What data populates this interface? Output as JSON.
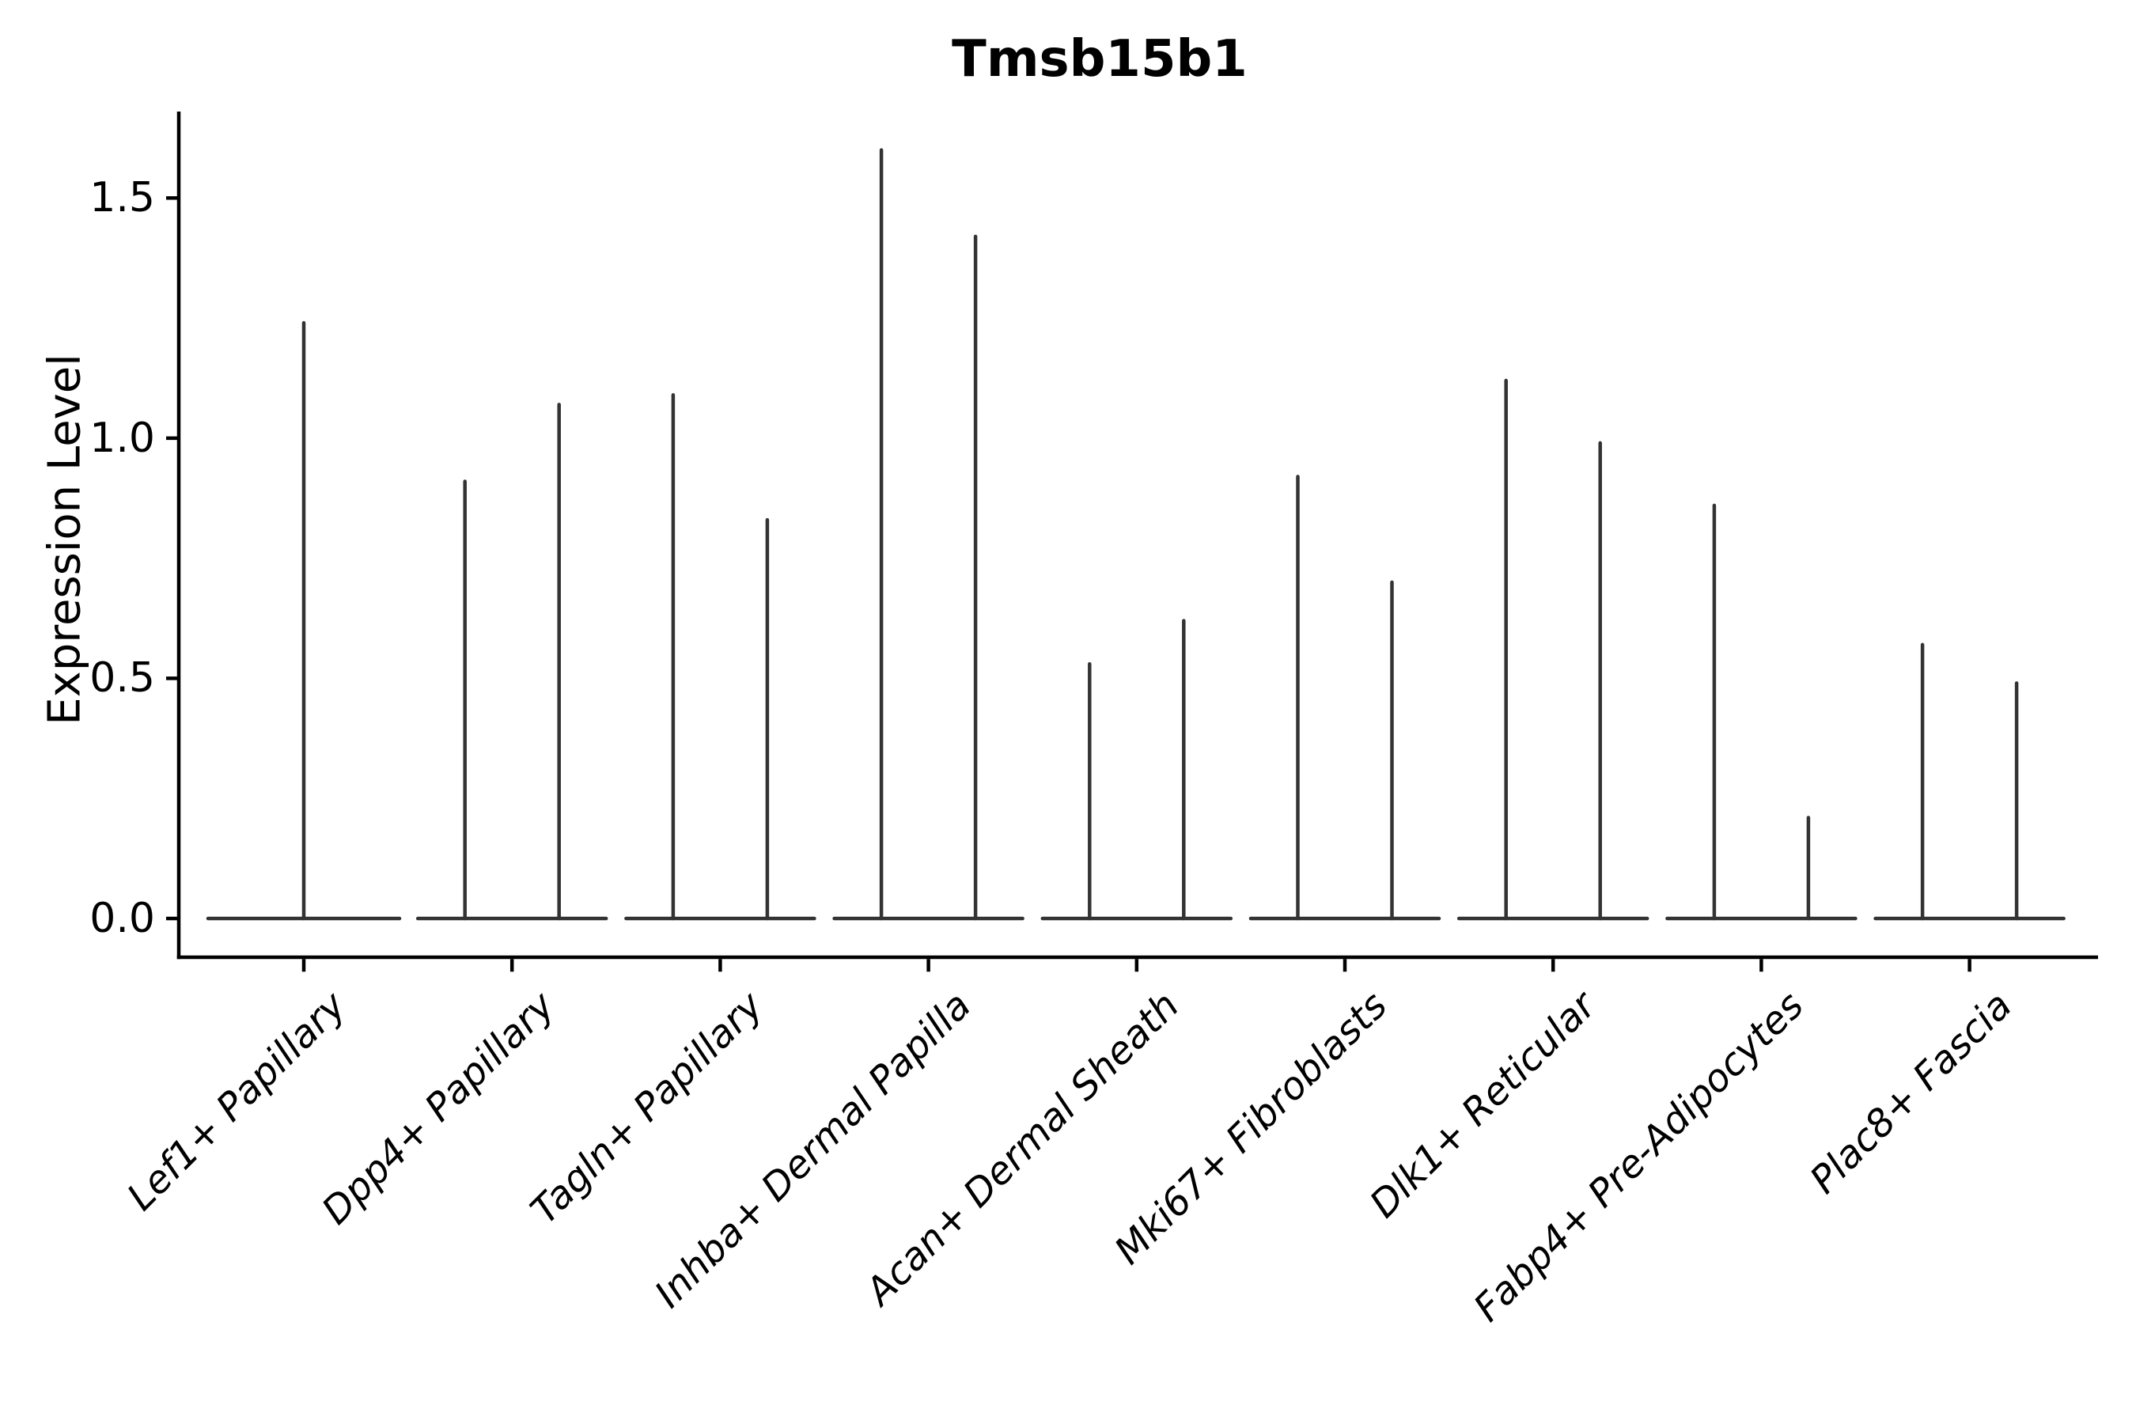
{
  "chart_data": {
    "type": "violin",
    "title": "Tmsb15b1",
    "ylabel": "Expression Level",
    "xlabel": "",
    "categories": [
      "Lef1+ Papillary",
      "Dpp4+ Papillary",
      "Tagln+ Papillary",
      "Inhba+ Dermal Papilla",
      "Acan+ Dermal Sheath",
      "Mki67+ Fibroblasts",
      "Dlk1+ Reticular",
      "Fabp4+ Pre-Adipocytes",
      "Plac8+ Fascia"
    ],
    "violin_max_per_category": [
      [
        1.24
      ],
      [
        0.91,
        1.07
      ],
      [
        1.09,
        0.83
      ],
      [
        1.6,
        1.42
      ],
      [
        0.53,
        0.62
      ],
      [
        0.92,
        0.7
      ],
      [
        1.12,
        0.99
      ],
      [
        0.86,
        0.21
      ],
      [
        0.57,
        0.49
      ]
    ],
    "violin_baseline_value": 0.0,
    "yticks": [
      {
        "label": "0.0",
        "value": 0.0
      },
      {
        "label": "0.5",
        "value": 0.5
      },
      {
        "label": "1.0",
        "value": 1.0
      },
      {
        "label": "1.5",
        "value": 1.5
      }
    ],
    "ylim": [
      0,
      1.68
    ],
    "grid": false,
    "legend": "none",
    "colors": {
      "violin_line": "#333333",
      "axis": "#000000",
      "text": "#000000",
      "background": "#ffffff"
    }
  }
}
